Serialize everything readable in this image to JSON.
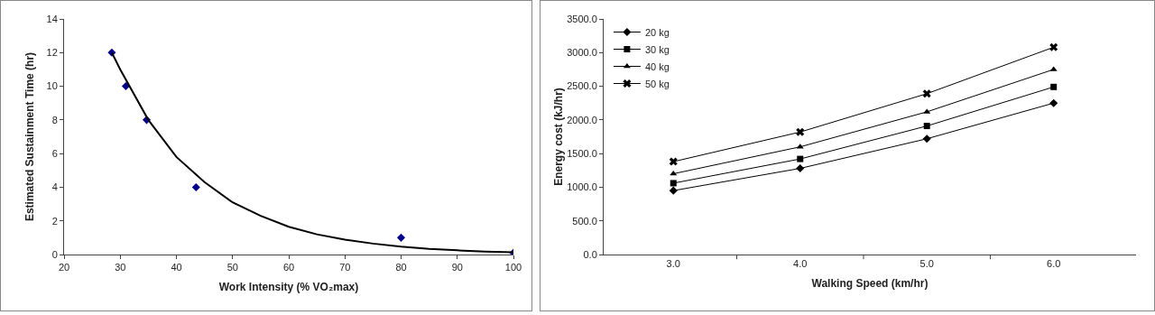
{
  "chart_data": [
    {
      "type": "scatter",
      "xlabel": "Work Intensity (% VO₂max)",
      "ylabel": "Estimated Sustainment Time (hr)",
      "xlim": [
        20,
        100
      ],
      "xticks": [
        20,
        30,
        40,
        50,
        60,
        70,
        80,
        90,
        100
      ],
      "ylim": [
        0,
        14
      ],
      "yticks": [
        0,
        2,
        4,
        6,
        8,
        10,
        12,
        14
      ],
      "grid": false,
      "legend": false,
      "series": [
        {
          "type": "scatter",
          "marker": "diamond",
          "color": "#00008b",
          "x": [
            28.5,
            31,
            34.7,
            43.5,
            80,
            100
          ],
          "values": [
            12,
            10,
            8,
            4,
            1,
            0.1
          ]
        },
        {
          "type": "line",
          "marker": "none",
          "color": "#000000",
          "x": [
            28.5,
            30,
            35,
            40,
            45,
            50,
            55,
            60,
            65,
            70,
            75,
            80,
            85,
            90,
            95,
            100
          ],
          "values": [
            12,
            11,
            8,
            5.8,
            4.3,
            3.1,
            2.3,
            1.65,
            1.2,
            0.88,
            0.65,
            0.47,
            0.34,
            0.25,
            0.18,
            0.13
          ]
        }
      ]
    },
    {
      "type": "line",
      "xlabel": "Walking Speed (km/hr)",
      "ylabel": "Energy cost (kJ/hr)",
      "categories": [
        "3.0",
        "4.0",
        "5.0",
        "6.0"
      ],
      "ylim": [
        0,
        3500
      ],
      "yticks": [
        {
          "value": 0,
          "label": "0.0"
        },
        {
          "value": 500,
          "label": "500.0"
        },
        {
          "value": 1000,
          "label": "1000.0"
        },
        {
          "value": 1500,
          "label": "1500.0"
        },
        {
          "value": 2000,
          "label": "2000.0"
        },
        {
          "value": 2500,
          "label": "2500.0"
        },
        {
          "value": 3000,
          "label": "3000.0"
        },
        {
          "value": 3500,
          "label": "3500.0"
        }
      ],
      "grid": false,
      "legend": "top left",
      "series": [
        {
          "name": "20 kg",
          "marker": "diamond",
          "color": "#000000",
          "values": [
            950,
            1280,
            1720,
            2250
          ]
        },
        {
          "name": "30 kg",
          "marker": "square",
          "color": "#000000",
          "values": [
            1060,
            1420,
            1910,
            2490
          ]
        },
        {
          "name": "40 kg",
          "marker": "triangle",
          "color": "#000000",
          "values": [
            1200,
            1600,
            2120,
            2750
          ]
        },
        {
          "name": "50 kg",
          "marker": "cross",
          "color": "#000000",
          "values": [
            1380,
            1820,
            2390,
            3080
          ]
        }
      ]
    }
  ]
}
